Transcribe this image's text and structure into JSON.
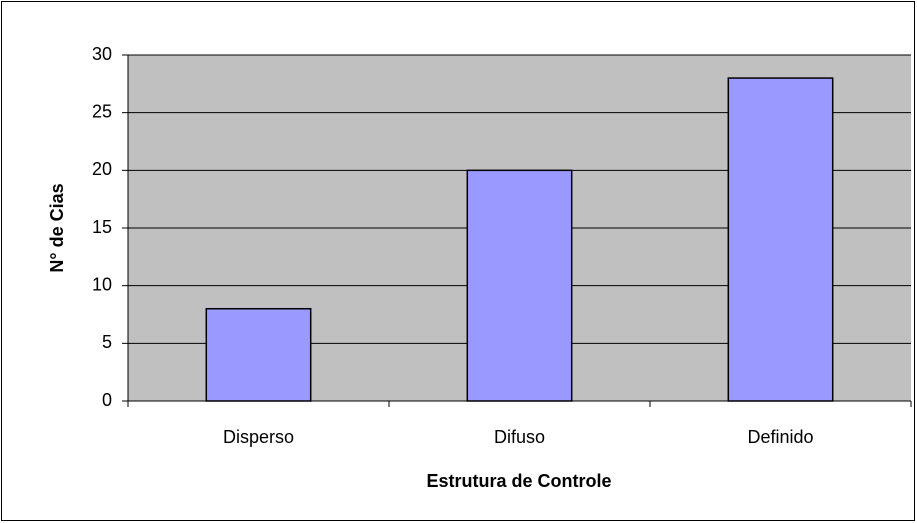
{
  "chart_data": {
    "type": "bar",
    "categories": [
      "Disperso",
      "Difuso",
      "Definido"
    ],
    "values": [
      8,
      20,
      28
    ],
    "color": "#9999ff",
    "xlabel": "Estrutura de Controle",
    "ylabel": "N° de Cias",
    "ylim": [
      0,
      30
    ],
    "yticks": [
      0,
      5,
      10,
      15,
      20,
      25,
      30
    ],
    "grid": true
  }
}
